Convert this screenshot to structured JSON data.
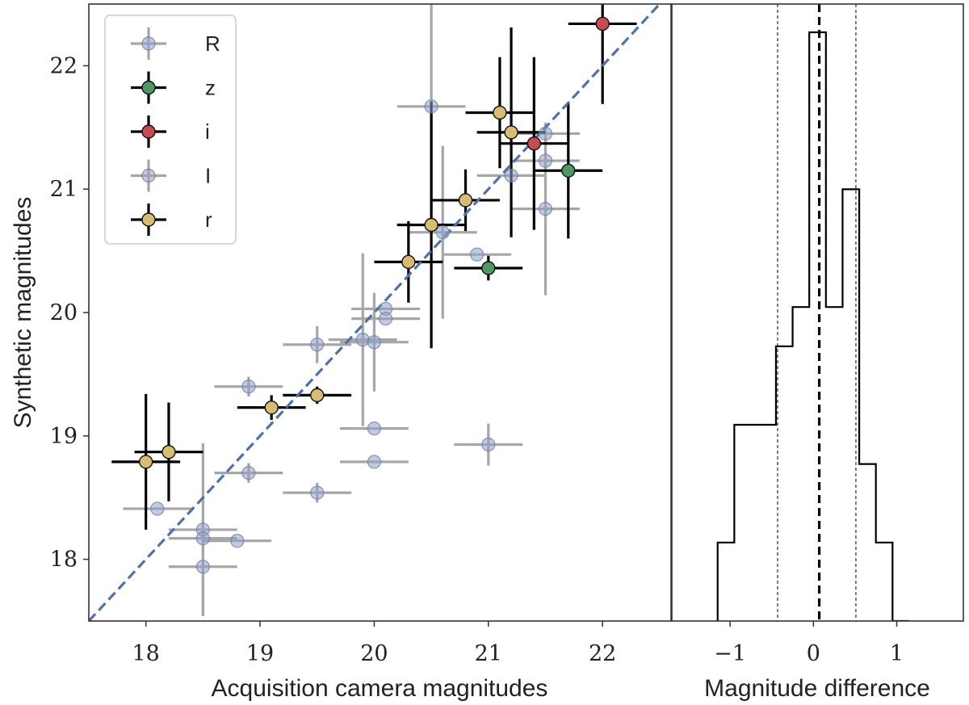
{
  "chart_data": [
    {
      "type": "scatter",
      "xlabel": "Acquisition camera magnitudes",
      "ylabel": "Synthetic magnitudes",
      "xlim": [
        17.5,
        22.6
      ],
      "ylim": [
        17.5,
        22.5
      ],
      "xticks": [
        "18",
        "19",
        "20",
        "21",
        "22"
      ],
      "yticks": [
        "18",
        "19",
        "20",
        "21",
        "22"
      ],
      "reference_line": "y = x",
      "legend": {
        "position": "top-left",
        "entries": [
          "R",
          "z",
          "i",
          "I",
          "r"
        ]
      },
      "series": [
        {
          "name": "R",
          "color": "#8ea1c9",
          "points": [
            {
              "x": 18.1,
              "y": 18.41,
              "xerr": 0.3,
              "yerr": 0.0
            },
            {
              "x": 18.5,
              "y": 18.24,
              "xerr": 0.3,
              "yerr": 0.7
            },
            {
              "x": 18.5,
              "y": 18.17,
              "xerr": 0.3,
              "yerr": 0.0
            },
            {
              "x": 18.5,
              "y": 17.94,
              "xerr": 0.3,
              "yerr": 0.4
            },
            {
              "x": 18.8,
              "y": 18.15,
              "xerr": 0.3,
              "yerr": 0.0
            },
            {
              "x": 18.9,
              "y": 18.7,
              "xerr": 0.3,
              "yerr": 0.08
            },
            {
              "x": 18.9,
              "y": 19.4,
              "xerr": 0.3,
              "yerr": 0.08
            },
            {
              "x": 19.5,
              "y": 18.54,
              "xerr": 0.3,
              "yerr": 0.08
            },
            {
              "x": 19.5,
              "y": 19.74,
              "xerr": 0.3,
              "yerr": 0.15
            },
            {
              "x": 19.9,
              "y": 19.78,
              "xerr": 0.3,
              "yerr": 0.7
            },
            {
              "x": 20.0,
              "y": 19.76,
              "xerr": 0.3,
              "yerr": 0.4
            },
            {
              "x": 20.0,
              "y": 19.06,
              "xerr": 0.3,
              "yerr": 0.0
            },
            {
              "x": 20.0,
              "y": 18.79,
              "xerr": 0.3,
              "yerr": 0.0
            },
            {
              "x": 20.1,
              "y": 20.03,
              "xerr": 0.3,
              "yerr": 0.0
            },
            {
              "x": 20.1,
              "y": 19.95,
              "xerr": 0.3,
              "yerr": 0.0
            },
            {
              "x": 20.5,
              "y": 21.67,
              "xerr": 0.3,
              "yerr": 0.85
            },
            {
              "x": 20.6,
              "y": 20.65,
              "xerr": 0.3,
              "yerr": 0.7
            },
            {
              "x": 20.9,
              "y": 20.47,
              "xerr": 0.3,
              "yerr": 0.0
            },
            {
              "x": 21.0,
              "y": 18.93,
              "xerr": 0.3,
              "yerr": 0.17
            },
            {
              "x": 21.2,
              "y": 21.11,
              "xerr": 0.3,
              "yerr": 0.0
            },
            {
              "x": 21.5,
              "y": 21.45,
              "xerr": 0.3,
              "yerr": 0.0
            },
            {
              "x": 21.5,
              "y": 21.23,
              "xerr": 0.3,
              "yerr": 0.0
            },
            {
              "x": 21.5,
              "y": 20.84,
              "xerr": 0.3,
              "yerr": 0.7
            }
          ]
        },
        {
          "name": "z",
          "color": "#4c9a62",
          "points": [
            {
              "x": 21.0,
              "y": 20.36,
              "xerr": 0.3,
              "yerr": 0.1
            },
            {
              "x": 21.7,
              "y": 21.15,
              "xerr": 0.3,
              "yerr": 0.55
            }
          ]
        },
        {
          "name": "i",
          "color": "#c64c4f",
          "points": [
            {
              "x": 21.4,
              "y": 21.37,
              "xerr": 0.3,
              "yerr": 0.7
            },
            {
              "x": 22.0,
              "y": 22.34,
              "xerr": 0.3,
              "yerr": 0.65
            }
          ]
        },
        {
          "name": "I",
          "color": "#a39fc3",
          "points": []
        },
        {
          "name": "r",
          "color": "#d8bc72",
          "points": [
            {
              "x": 18.0,
              "y": 18.79,
              "xerr": 0.3,
              "yerr": 0.55
            },
            {
              "x": 18.2,
              "y": 18.87,
              "xerr": 0.3,
              "yerr": 0.4
            },
            {
              "x": 19.1,
              "y": 19.23,
              "xerr": 0.3,
              "yerr": 0.1
            },
            {
              "x": 19.5,
              "y": 19.33,
              "xerr": 0.3,
              "yerr": 0.07
            },
            {
              "x": 20.3,
              "y": 20.41,
              "xerr": 0.3,
              "yerr": 0.33
            },
            {
              "x": 20.5,
              "y": 20.71,
              "xerr": 0.3,
              "yerr": 1.0
            },
            {
              "x": 20.8,
              "y": 20.91,
              "xerr": 0.3,
              "yerr": 0.25
            },
            {
              "x": 21.1,
              "y": 21.62,
              "xerr": 0.3,
              "yerr": 0.45
            },
            {
              "x": 21.2,
              "y": 21.46,
              "xerr": 0.3,
              "yerr": 0.85
            }
          ]
        }
      ]
    },
    {
      "type": "histogram",
      "xlabel": "Magnitude difference",
      "xlim": [
        -1.7,
        1.8
      ],
      "xticks": [
        "−1",
        "0",
        "1"
      ],
      "bin_edges": [
        -1.15,
        -0.95,
        -0.45,
        -0.25,
        -0.05,
        0.15,
        0.35,
        0.55,
        0.75,
        0.95,
        1.15
      ],
      "counts": [
        2,
        5,
        7,
        8,
        15,
        8,
        11,
        4,
        2,
        0
      ],
      "median_line": 0.07,
      "spread_lines": [
        -0.43,
        0.51
      ]
    }
  ]
}
